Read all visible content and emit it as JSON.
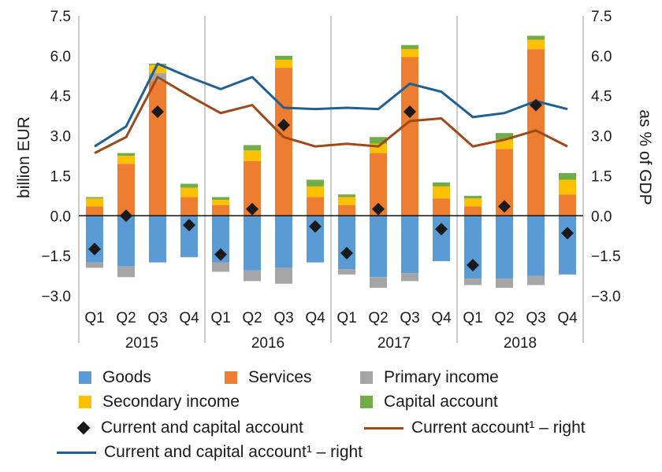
{
  "chart_data": {
    "type": "bar",
    "subtype": "stacked bar with line and marker overlays",
    "left_axis": {
      "label": "billion EUR",
      "ylim": [
        -3.0,
        7.5
      ],
      "ticks": [
        "7.5",
        "6.0",
        "4.5",
        "3.0",
        "1.5",
        "0.0",
        "−1.5",
        "−3.0"
      ]
    },
    "right_axis": {
      "label": "as % of GDP",
      "ylim": [
        -3.0,
        7.5
      ],
      "ticks": [
        "7.5",
        "6.0",
        "4.5",
        "3.0",
        "1.5",
        "0.0",
        "−1.5",
        "−3.0"
      ]
    },
    "quarters": [
      "Q1",
      "Q2",
      "Q3",
      "Q4",
      "Q1",
      "Q2",
      "Q3",
      "Q4",
      "Q1",
      "Q2",
      "Q3",
      "Q4",
      "Q1",
      "Q2",
      "Q3",
      "Q4"
    ],
    "years": [
      "2015",
      "2016",
      "2017",
      "2018"
    ],
    "gridlines": "vertical separators between years",
    "legend_placement": "bottom",
    "stack_series": [
      {
        "name": "Goods",
        "color": "#5b9bd5",
        "values": [
          -1.75,
          -1.9,
          -1.75,
          -1.55,
          -1.75,
          -2.05,
          -1.95,
          -1.75,
          -2.0,
          -2.3,
          -2.15,
          -1.7,
          -2.35,
          -2.35,
          -2.25,
          -2.2
        ]
      },
      {
        "name": "Services",
        "color": "#ed7d31",
        "values": [
          0.35,
          1.95,
          5.05,
          0.7,
          0.4,
          2.05,
          5.55,
          0.7,
          0.4,
          2.35,
          5.95,
          0.65,
          0.35,
          2.5,
          6.25,
          0.8
        ]
      },
      {
        "name": "Primary income",
        "color": "#a5a5a5",
        "values": [
          -0.2,
          -0.4,
          0.3,
          0.0,
          -0.35,
          -0.4,
          -0.6,
          0.0,
          -0.2,
          -0.4,
          -0.3,
          0.0,
          -0.25,
          -0.35,
          -0.35,
          0.0
        ]
      },
      {
        "name": "Secondary income",
        "color": "#ffc000",
        "values": [
          0.3,
          0.3,
          0.3,
          0.35,
          0.2,
          0.4,
          0.3,
          0.4,
          0.3,
          0.35,
          0.3,
          0.45,
          0.3,
          0.35,
          0.35,
          0.55
        ]
      },
      {
        "name": "Capital account",
        "color": "#70ad47",
        "values": [
          0.05,
          0.1,
          0.05,
          0.15,
          0.1,
          0.2,
          0.15,
          0.25,
          0.1,
          0.25,
          0.15,
          0.15,
          0.1,
          0.25,
          0.15,
          0.25
        ]
      }
    ],
    "marker_series": {
      "name": "Current and capital account",
      "color": "#1a1a1a",
      "values": [
        -1.25,
        0.0,
        3.9,
        -0.35,
        -1.45,
        0.25,
        3.4,
        -0.4,
        -1.4,
        0.25,
        3.9,
        -0.5,
        -1.85,
        0.35,
        4.15,
        -0.65
      ]
    },
    "line_series": [
      {
        "name": "Current account¹ – right",
        "color": "#9c4a1a",
        "values": [
          2.35,
          2.95,
          5.2,
          4.5,
          3.85,
          4.15,
          2.95,
          2.6,
          2.7,
          2.6,
          3.55,
          3.65,
          2.6,
          2.85,
          3.2,
          2.6
        ]
      },
      {
        "name": "Current and capital account¹ – right",
        "color": "#1f5f94",
        "values": [
          2.6,
          3.35,
          5.7,
          5.2,
          4.75,
          5.2,
          4.05,
          4.0,
          4.05,
          4.0,
          4.95,
          4.65,
          3.7,
          3.85,
          4.3,
          4.0
        ]
      }
    ]
  },
  "legend": {
    "goods": "Goods",
    "services": "Services",
    "primary": "Primary income",
    "secondary": "Secondary income",
    "capital": "Capital account",
    "cca_marker": "Current and capital account",
    "ca_line": "Current account¹ – right",
    "cca_line": "Current and capital account¹ – right"
  }
}
